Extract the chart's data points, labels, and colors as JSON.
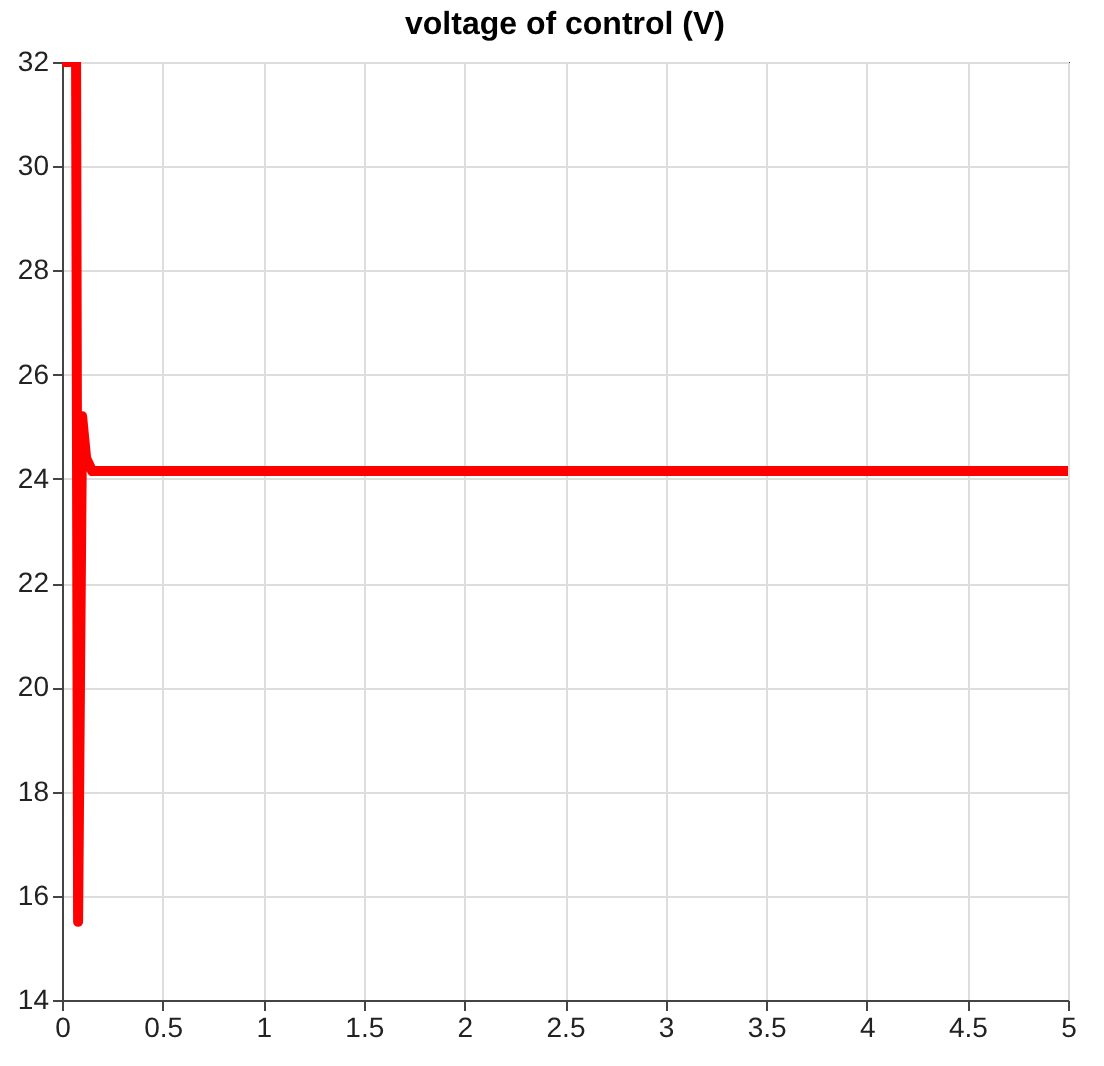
{
  "chart_data": {
    "type": "line",
    "title": "voltage of control (V)",
    "x": [
      0,
      0.07,
      0.08,
      0.1,
      0.12,
      0.15,
      5
    ],
    "series": [
      {
        "color": "#ff0000",
        "values": [
          32,
          32,
          15.5,
          25.2,
          24.4,
          24.15,
          24.15
        ]
      }
    ],
    "xlim": [
      0,
      5
    ],
    "xticks": [
      0,
      0.5,
      1,
      1.5,
      2,
      2.5,
      3,
      3.5,
      4,
      4.5,
      5
    ],
    "ylim": [
      14,
      32
    ],
    "yticks": [
      14,
      16,
      18,
      20,
      22,
      24,
      26,
      28,
      30,
      32
    ],
    "grid": true,
    "marker": "none",
    "line_style": "solid"
  }
}
